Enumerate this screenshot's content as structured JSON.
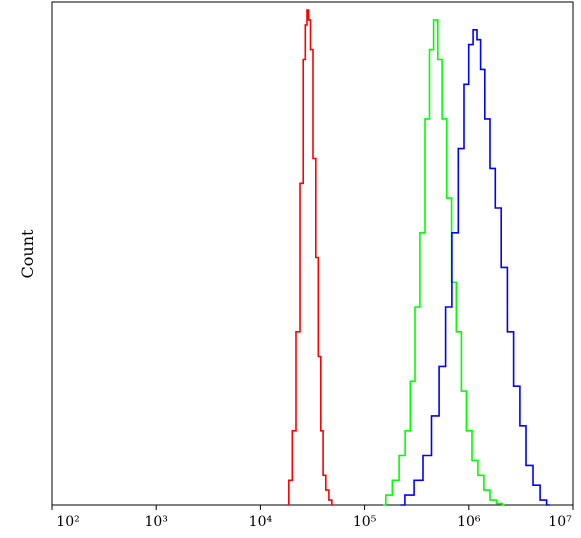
{
  "chart_data": {
    "type": "line",
    "ylabel": "Count",
    "xlabel": "",
    "x_scale": "log",
    "xlim": [
      100,
      10000000
    ],
    "x_ticks": [
      {
        "value": 100,
        "label": "10²"
      },
      {
        "value": 1000,
        "label": "10³"
      },
      {
        "value": 10000,
        "label": "10⁴"
      },
      {
        "value": 100000,
        "label": "10⁵"
      },
      {
        "value": 1000000,
        "label": "10⁶"
      },
      {
        "value": 10000000,
        "label": "10⁷"
      }
    ],
    "ylim": [
      0,
      100
    ],
    "grid": false,
    "legend": false,
    "series": [
      {
        "color": "#ff0000",
        "x": [
          18000,
          19500,
          21000,
          23000,
          25000,
          26500,
          27500,
          28500,
          29500,
          31000,
          33000,
          35000,
          37000,
          39000,
          41000,
          44000,
          47000,
          50000
        ],
        "y": [
          0,
          5,
          15,
          35,
          65,
          90,
          97,
          100,
          98,
          92,
          70,
          50,
          30,
          15,
          6,
          3,
          1,
          0
        ]
      },
      {
        "color": "#00ff00",
        "x": [
          150000,
          170000,
          200000,
          230000,
          260000,
          290000,
          320000,
          360000,
          400000,
          440000,
          480000,
          530000,
          580000,
          650000,
          720000,
          800000,
          900000,
          1000000,
          1150000,
          1300000,
          1500000,
          1700000,
          2000000,
          2200000
        ],
        "y": [
          0,
          2,
          5,
          10,
          15,
          25,
          40,
          55,
          78,
          92,
          98,
          90,
          78,
          62,
          45,
          35,
          23,
          15,
          9,
          6,
          3,
          1,
          0.3,
          0
        ]
      },
      {
        "color": "#0000ff",
        "x": [
          220000,
          270000,
          330000,
          400000,
          480000,
          560000,
          640000,
          740000,
          850000,
          950000,
          1050000,
          1150000,
          1250000,
          1350000,
          1500000,
          1700000,
          1900000,
          2200000,
          2500000,
          2900000,
          3300000,
          3800000,
          4500000,
          5200000,
          6000000
        ],
        "y": [
          0,
          2,
          5,
          10,
          18,
          28,
          40,
          55,
          72,
          85,
          93,
          96,
          94,
          88,
          78,
          68,
          60,
          48,
          35,
          24,
          16,
          8,
          4,
          1,
          0
        ]
      }
    ]
  }
}
